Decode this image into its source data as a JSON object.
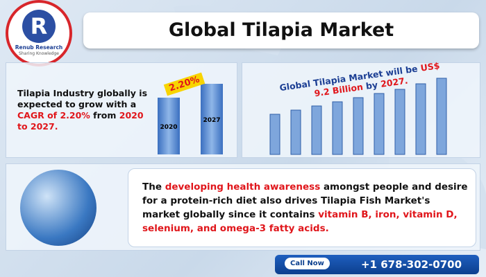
{
  "logo": {
    "name": "Renub Research",
    "tagline": "Sharing Knowledge"
  },
  "header": {
    "title": "Global Tilapia Market"
  },
  "growth_panel": {
    "segments": [
      {
        "text": "Tilapia Industry globally is expected to grow with a ",
        "emphasis": false
      },
      {
        "text": "CAGR of 2.20%",
        "emphasis": true
      },
      {
        "text": " from ",
        "emphasis": false
      },
      {
        "text": "2020 to 2027.",
        "emphasis": true
      }
    ],
    "bar_labels": [
      "2020",
      "2027"
    ],
    "rate_label": "2.20%"
  },
  "market_panel": {
    "segments": [
      {
        "text": "Global Tilapia Market",
        "emphasis": false
      },
      {
        "text": " will be ",
        "emphasis": false
      },
      {
        "text": "US$ 9.2 Billion",
        "emphasis": true
      },
      {
        "text": " by ",
        "emphasis": false
      },
      {
        "text": "2027.",
        "emphasis": true
      }
    ]
  },
  "description": {
    "segments": [
      {
        "text": "The ",
        "emphasis": false
      },
      {
        "text": "developing health awareness",
        "emphasis": true
      },
      {
        "text": " amongst people and desire for a protein-rich diet also drives Tilapia Fish Market's market globally since it contains ",
        "emphasis": false
      },
      {
        "text": "vitamin B, iron, vitamin D, selenium, and omega-3 fatty acids.",
        "emphasis": true
      }
    ]
  },
  "contact": {
    "label": "Call Now",
    "phone": "+1 678-302-0700"
  }
}
